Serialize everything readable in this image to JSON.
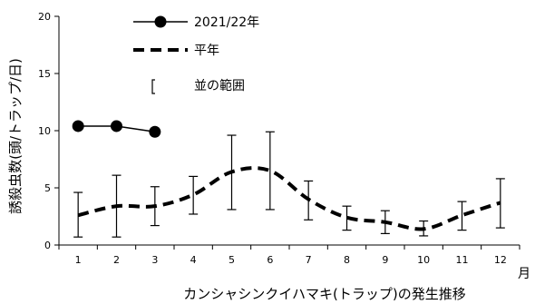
{
  "chart_data": {
    "type": "line",
    "title": "カンシャシンクイハマキ(トラップ)の発生推移",
    "xlabel": "月",
    "ylabel": "誘殺虫数(頭/トラップ/日)",
    "categories": [
      "1",
      "2",
      "3",
      "4",
      "5",
      "6",
      "7",
      "8",
      "9",
      "10",
      "11",
      "12"
    ],
    "ylim": [
      0,
      20
    ],
    "yticks": [
      "0",
      "5",
      "10",
      "15",
      "20"
    ],
    "grid": false,
    "legend_position": "top-left",
    "series": [
      {
        "name": "2021/22年",
        "style": "solid-marker",
        "color": "#000000",
        "values": [
          10.4,
          10.4,
          9.9,
          null,
          null,
          null,
          null,
          null,
          null,
          null,
          null,
          null
        ]
      },
      {
        "name": "平年",
        "style": "dashed",
        "color": "#000000",
        "values": [
          2.6,
          3.4,
          3.4,
          4.4,
          6.4,
          6.5,
          4.0,
          2.4,
          2.0,
          1.4,
          2.6,
          3.7
        ],
        "range_low": [
          0.7,
          0.7,
          1.7,
          2.7,
          3.1,
          3.1,
          2.2,
          1.3,
          1.0,
          0.8,
          1.3,
          1.5
        ],
        "range_high": [
          4.6,
          6.1,
          5.1,
          6.0,
          9.6,
          9.9,
          5.6,
          3.4,
          3.0,
          2.1,
          3.8,
          5.8
        ]
      }
    ],
    "range_legend": "並の範囲"
  }
}
